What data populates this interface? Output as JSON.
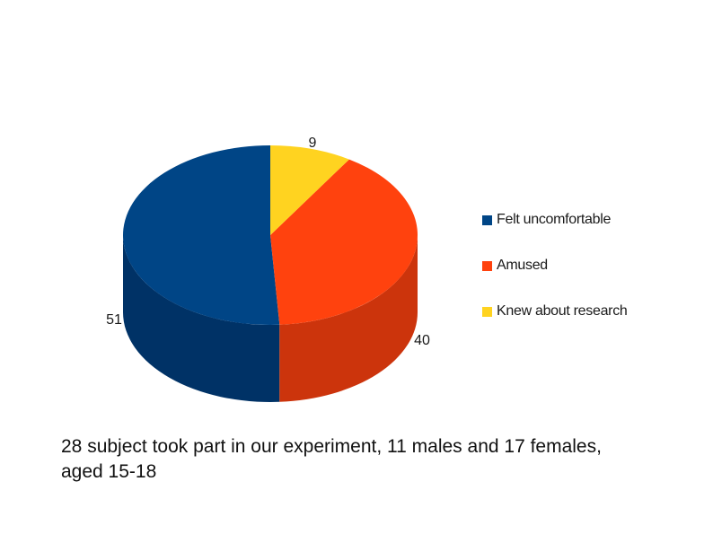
{
  "chart_data": {
    "type": "pie",
    "title": "",
    "slices": [
      {
        "label": "Felt uncomfortable",
        "value": 51,
        "data_label": "51",
        "color": "#004586",
        "side_color": "#003266"
      },
      {
        "label": "Amused",
        "value": 40,
        "data_label": "40",
        "color": "#ff420e",
        "side_color": "#cc340c"
      },
      {
        "label": "Knew about research",
        "value": 9,
        "data_label": "9",
        "color": "#ffd320",
        "side_color": "#d4a800"
      }
    ],
    "style": "3d-cylinder",
    "legend_position": "right"
  },
  "caption": "28 subject took part in our experiment, 11 males and 17 females, aged 15-18"
}
